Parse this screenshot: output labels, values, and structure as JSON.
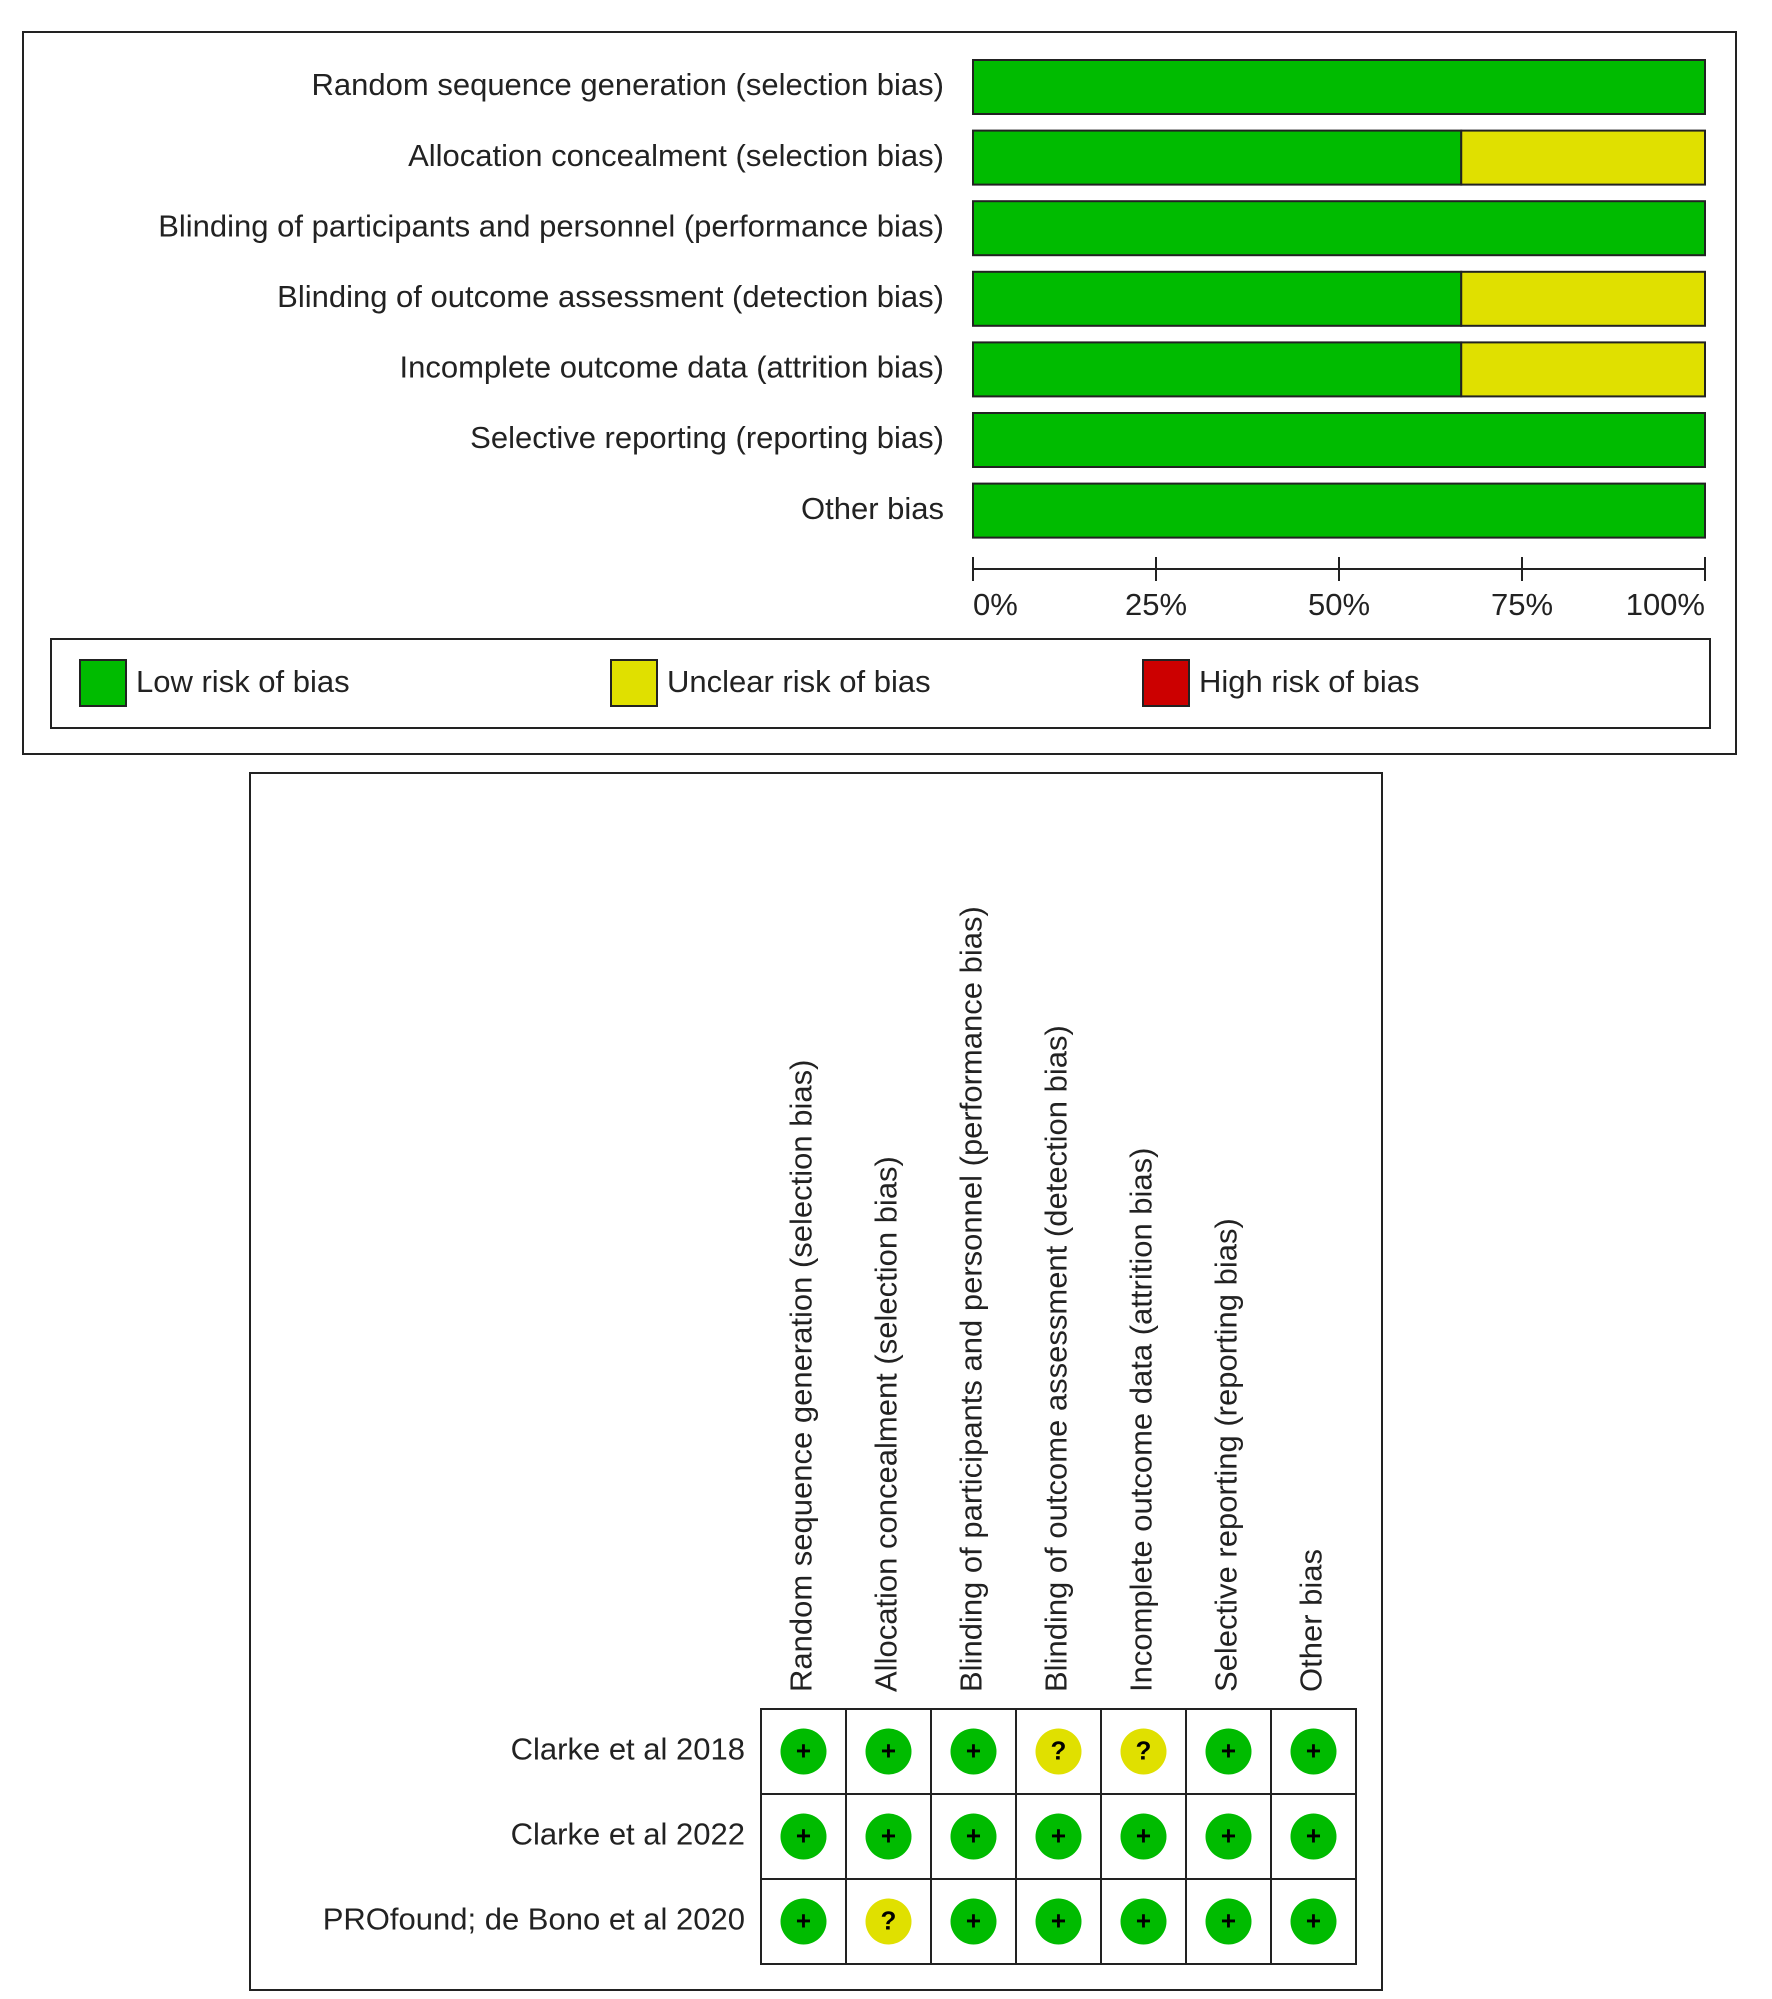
{
  "chart_data": {
    "type": "stacked_barh",
    "categories": [
      "Random sequence generation (selection bias)",
      "Allocation concealment (selection bias)",
      "Blinding of participants and personnel (performance bias)",
      "Blinding of outcome assessment (detection bias)",
      "Incomplete outcome data (attrition bias)",
      "Selective reporting (reporting bias)",
      "Other bias"
    ],
    "series": [
      {
        "name": "Low risk of bias",
        "color": "#00bb00",
        "values": [
          100,
          66.7,
          100,
          66.7,
          66.7,
          100,
          100
        ]
      },
      {
        "name": "Unclear risk of bias",
        "color": "#e0e000",
        "values": [
          0,
          33.3,
          0,
          33.3,
          33.3,
          0,
          0
        ]
      },
      {
        "name": "High risk of bias",
        "color": "#cc0000",
        "values": [
          0,
          0,
          0,
          0,
          0,
          0,
          0
        ]
      }
    ],
    "xlim": [
      0,
      100
    ],
    "xticks": [
      {
        "value": 0,
        "label": "0%"
      },
      {
        "value": 25,
        "label": "25%"
      },
      {
        "value": 50,
        "label": "50%"
      },
      {
        "value": 75,
        "label": "75%"
      },
      {
        "value": 100,
        "label": "100%"
      }
    ]
  },
  "summary": {
    "studies": [
      "Clarke et al 2018",
      "Clarke et al 2022",
      "PROfound; de Bono et al 2020"
    ],
    "judgements": [
      [
        "+",
        "+",
        "+",
        "?",
        "?",
        "+",
        "+"
      ],
      [
        "+",
        "+",
        "+",
        "+",
        "+",
        "+",
        "+"
      ],
      [
        "+",
        "?",
        "+",
        "+",
        "+",
        "+",
        "+"
      ]
    ],
    "symbol_colors": {
      "+": "#00bb00",
      "?": "#e0e000"
    }
  }
}
